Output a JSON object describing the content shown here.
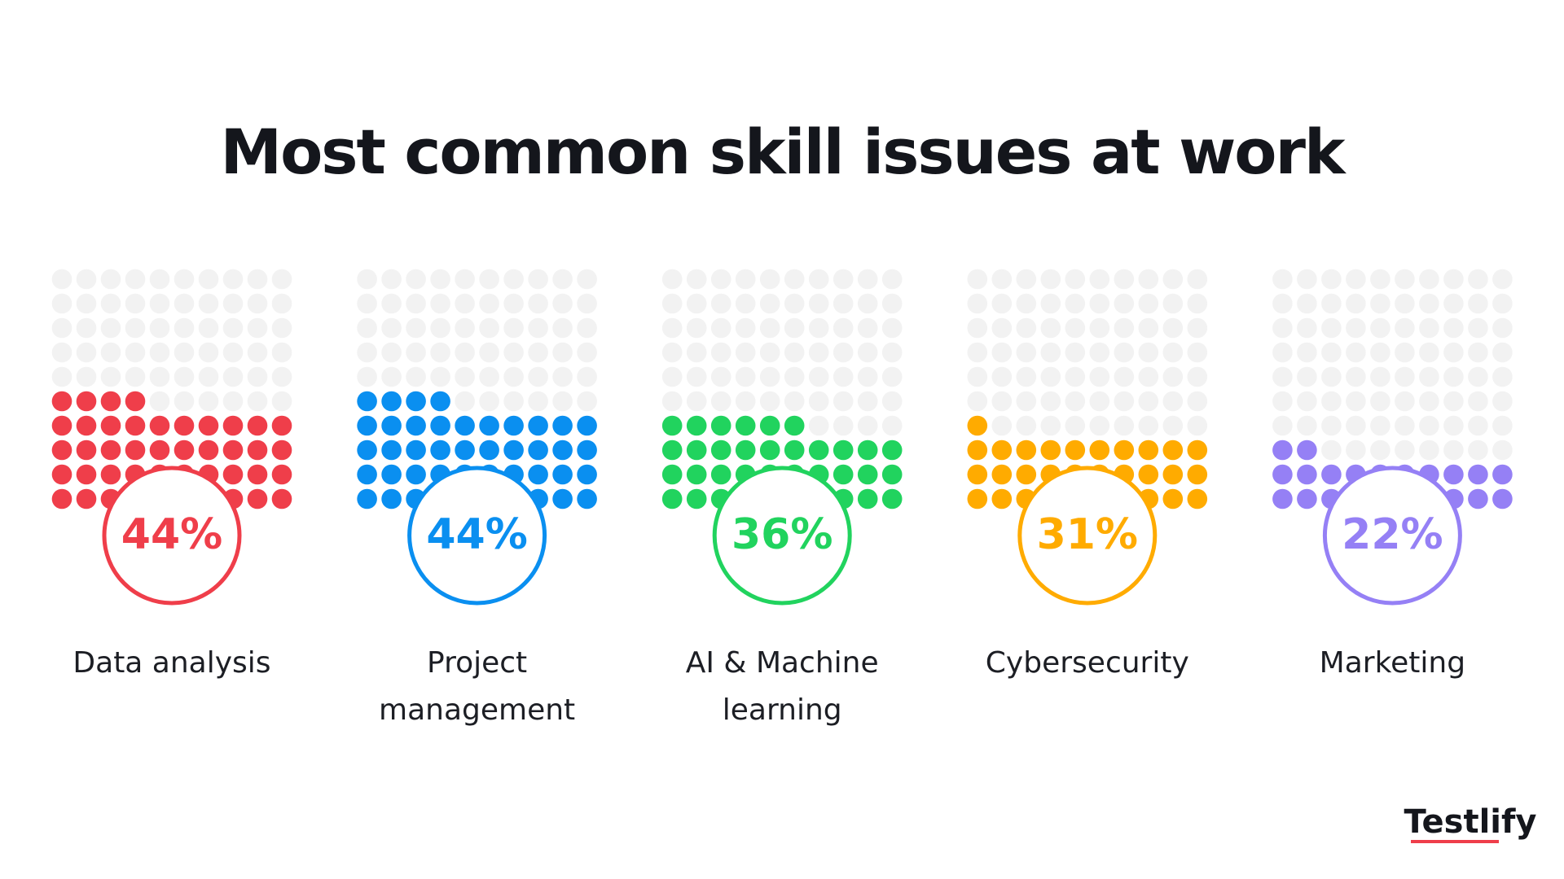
{
  "chart_data": {
    "type": "waffle",
    "title": "Most common skill issues at work",
    "categories": [
      "Data analysis",
      "Project management",
      "AI & Machine learning",
      "Cybersecurity",
      "Marketing"
    ],
    "values": [
      44,
      44,
      36,
      31,
      22
    ],
    "value_labels": [
      "44%",
      "44%",
      "36%",
      "31%",
      "22%"
    ],
    "colors": [
      "#ef3e4a",
      "#0a8ff0",
      "#21d35e",
      "#ffab00",
      "#9580f5"
    ]
  },
  "brand": "Testlify"
}
